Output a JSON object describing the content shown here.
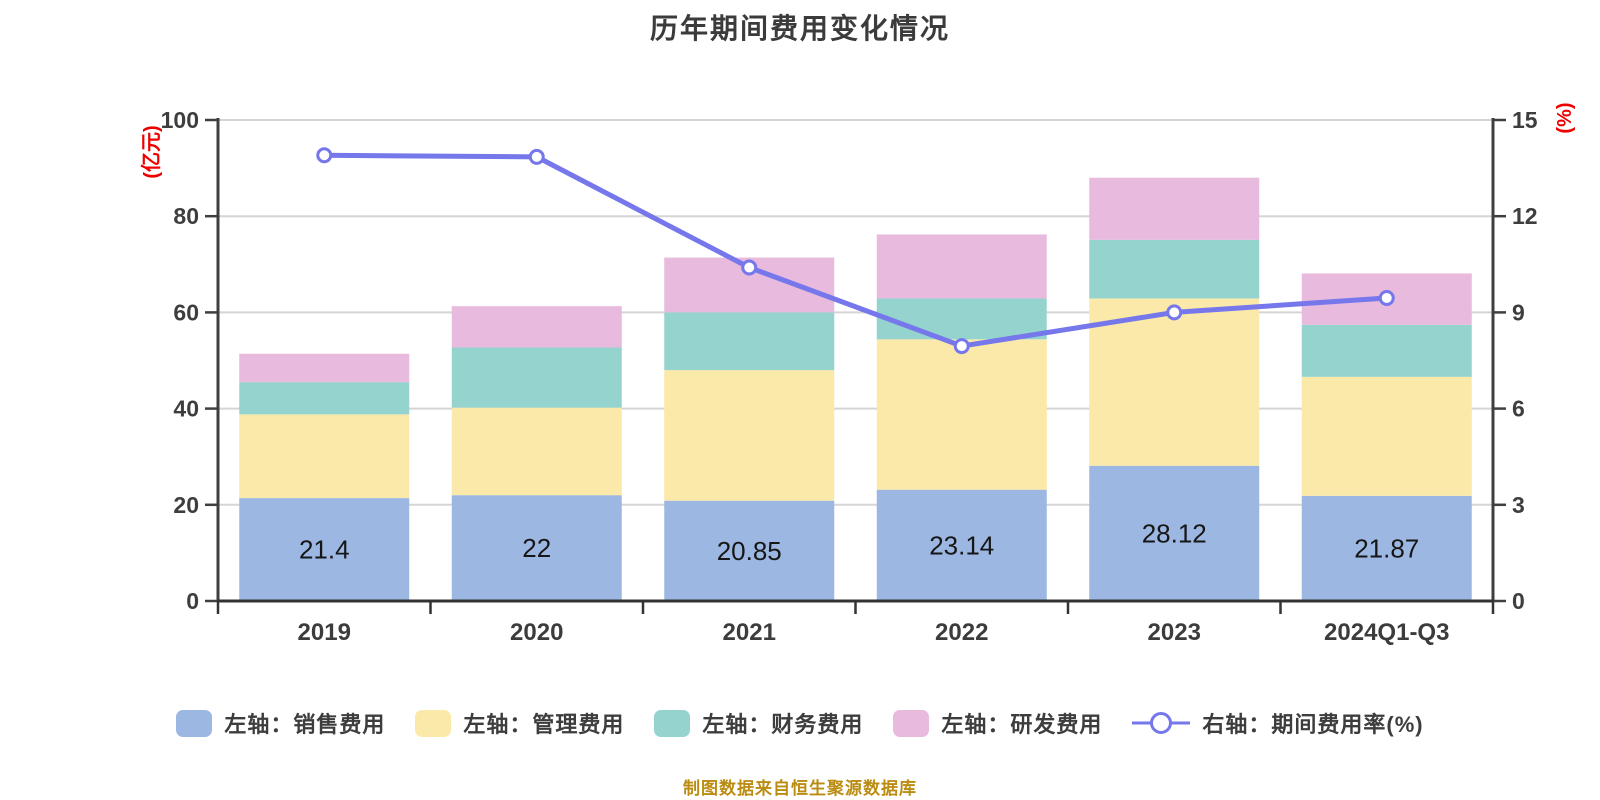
{
  "source_note": "制图数据来自恒生聚源数据库",
  "chart_data": {
    "type": "bar",
    "subtype": "stacked-bar-with-line-combo",
    "title": "历年期间费用变化情况",
    "categories": [
      "2019",
      "2020",
      "2021",
      "2022",
      "2023",
      "2024Q1-Q3"
    ],
    "bar_series": [
      {
        "name": "左轴：销售费用",
        "color": "#9CB8E2",
        "values": [
          21.4,
          22,
          20.85,
          23.14,
          28.12,
          21.87
        ]
      },
      {
        "name": "左轴：管理费用",
        "color": "#FAE9A9",
        "values": [
          17.4,
          18.2,
          27.15,
          31.26,
          34.78,
          24.73
        ]
      },
      {
        "name": "左轴：财务费用",
        "color": "#95D3CF",
        "values": [
          6.7,
          12.5,
          12.0,
          8.5,
          12.2,
          10.8
        ]
      },
      {
        "name": "左轴：研发费用",
        "color": "#E7BADE",
        "values": [
          5.9,
          8.6,
          11.4,
          13.3,
          12.9,
          10.7
        ]
      }
    ],
    "line_series": {
      "name": "右轴：期间费用率(%)",
      "color": "#7577EB",
      "marker": "white-circle",
      "values": [
        13.9,
        13.85,
        10.4,
        7.95,
        9.0,
        9.45
      ]
    },
    "bar_value_labels": {
      "series_index": 0,
      "labels": [
        "21.4",
        "22",
        "20.85",
        "23.14",
        "28.12",
        "21.87"
      ]
    },
    "left_axis": {
      "title": "(亿元)",
      "title_color": "#EE0000",
      "min": 0,
      "max": 100,
      "ticks": [
        0,
        20,
        40,
        60,
        80,
        100
      ]
    },
    "right_axis": {
      "title": "(%)",
      "title_color": "#EE0000",
      "min": 0,
      "max": 15,
      "ticks": [
        0,
        3,
        6,
        9,
        12,
        15
      ]
    },
    "grid": true,
    "legend_position": "bottom"
  }
}
